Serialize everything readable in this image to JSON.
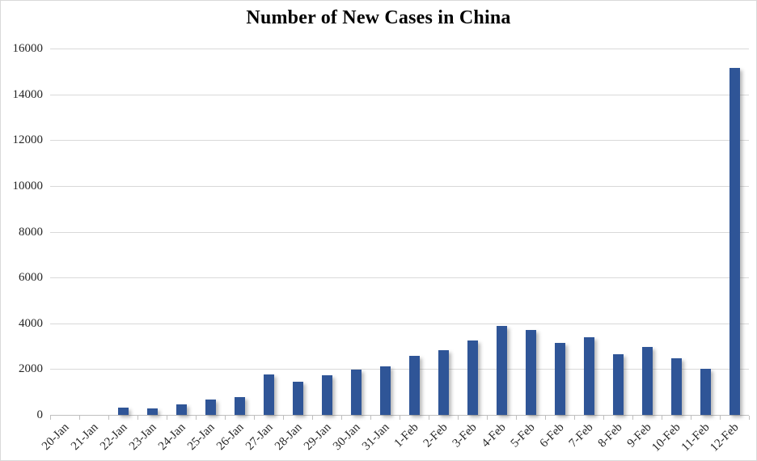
{
  "chart_data": {
    "type": "bar",
    "title": "Number of New Cases in China",
    "categories": [
      "20-Jan",
      "21-Jan",
      "22-Jan",
      "23-Jan",
      "24-Jan",
      "25-Jan",
      "26-Jan",
      "27-Jan",
      "28-Jan",
      "29-Jan",
      "30-Jan",
      "31-Jan",
      "1-Feb",
      "2-Feb",
      "3-Feb",
      "4-Feb",
      "5-Feb",
      "6-Feb",
      "7-Feb",
      "8-Feb",
      "9-Feb",
      "10-Feb",
      "11-Feb",
      "12-Feb"
    ],
    "values": [
      0,
      0,
      310,
      280,
      444,
      688,
      769,
      1771,
      1459,
      1737,
      1982,
      2102,
      2590,
      2829,
      3235,
      3887,
      3694,
      3143,
      3399,
      2656,
      2950,
      2478,
      2015,
      15152
    ],
    "xlabel": "",
    "ylabel": "",
    "ylim": [
      0,
      16000
    ],
    "ytick_step": 2000,
    "grid": true,
    "legend_position": "none",
    "colors": {
      "bar": "#2F5597",
      "gridline": "#D9D9D9",
      "axis": "#BFBFBF",
      "tick_label": "#262626",
      "title": "#000000",
      "background": "#FFFFFF",
      "border": "#D9D9D9"
    }
  }
}
